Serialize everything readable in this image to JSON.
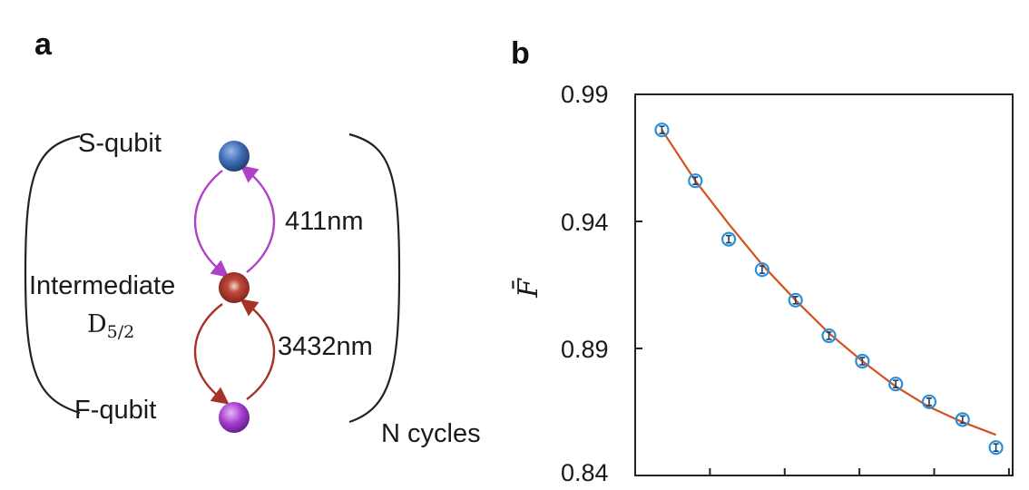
{
  "panel_a": {
    "label": "a",
    "levels": {
      "s_qubit": "S-qubit",
      "intermediate": "Intermediate",
      "intermediate_state_base": "D",
      "intermediate_state_sub": "5/2",
      "f_qubit": "F-qubit"
    },
    "transitions": {
      "upper": "411nm",
      "lower": "3432nm"
    },
    "cycle_label": "N cycles",
    "colors": {
      "s_qubit": "#3e6db5",
      "intermediate": "#b23a2e",
      "f_qubit": "#a63fd0",
      "upper_arrow": "#b040c8",
      "lower_arrow": "#a8322a"
    }
  },
  "panel_b": {
    "label": "b"
  },
  "chart_data": {
    "type": "scatter",
    "ylabel": "F̄",
    "xlabel": "",
    "ylim": [
      0.84,
      0.99
    ],
    "yticks": [
      "0.99",
      "0.94",
      "0.89",
      "0.84"
    ],
    "x": [
      1,
      2,
      3,
      4,
      5,
      6,
      7,
      8,
      9,
      10,
      11
    ],
    "series": [
      {
        "type": "points",
        "values": [
          0.976,
          0.956,
          0.933,
          0.921,
          0.909,
          0.895,
          0.885,
          0.876,
          0.869,
          0.862,
          0.851
        ],
        "color": "#2a8fd6"
      },
      {
        "type": "fit",
        "values": [
          0.976,
          0.956,
          0.939,
          0.923,
          0.909,
          0.896,
          0.885,
          0.875,
          0.867,
          0.861,
          0.856
        ],
        "color": "#d2541c"
      }
    ]
  }
}
